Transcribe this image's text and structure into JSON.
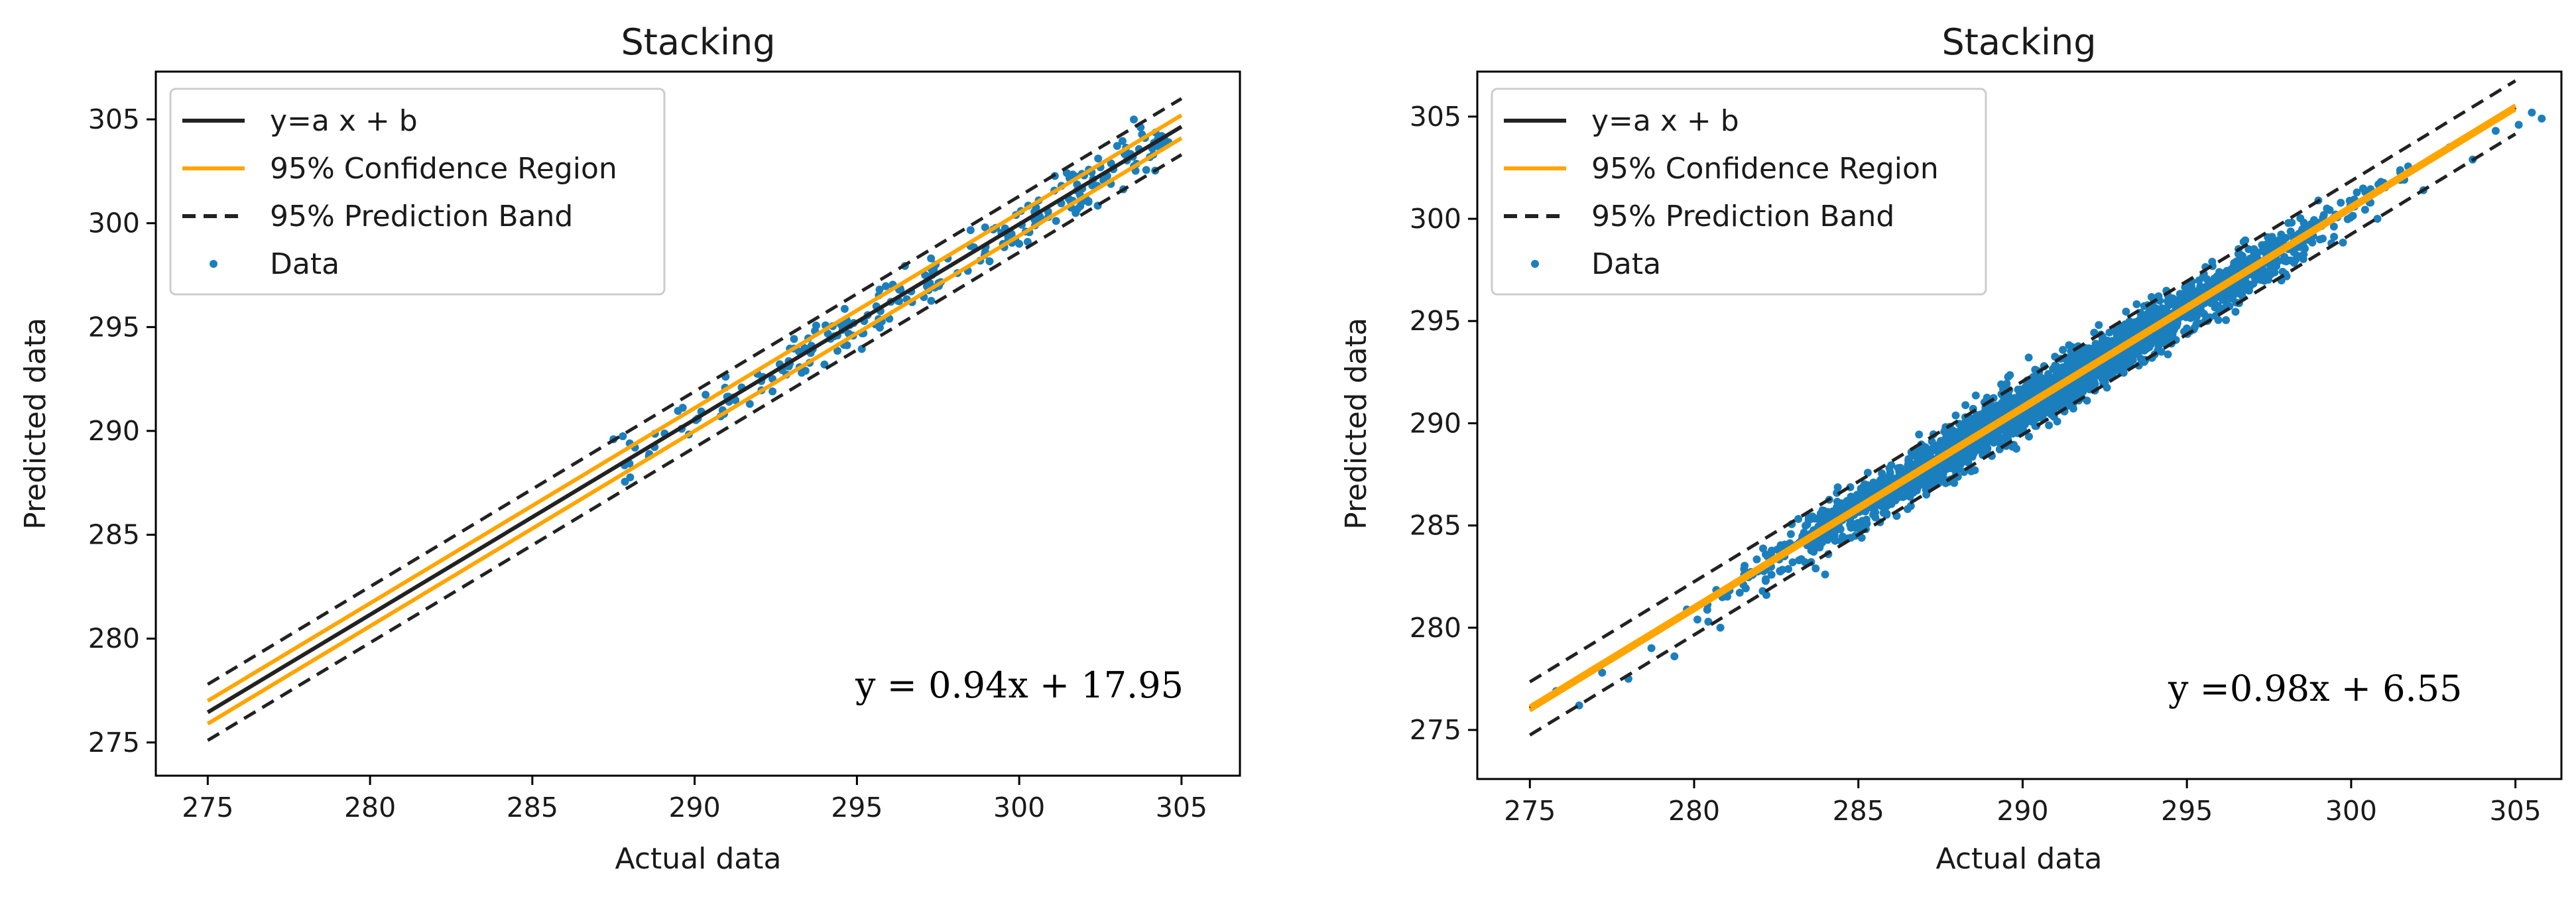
{
  "chart_data": [
    {
      "type": "scatter",
      "title": "Stacking",
      "xlabel": "Actual data",
      "ylabel": "Predicted data",
      "xlim": [
        273.4,
        306.8
      ],
      "ylim": [
        273.4,
        307.3
      ],
      "xticks": [
        275,
        280,
        285,
        290,
        295,
        300,
        305
      ],
      "yticks": [
        275,
        280,
        285,
        290,
        295,
        300,
        305
      ],
      "fit": {
        "slope": 0.94,
        "intercept": 17.95
      },
      "confidence_halfwidth": 0.55,
      "prediction_halfwidth": 1.35,
      "equation_text": "y = 0.94x + 17.95",
      "legend": [
        {
          "label": "y=a x + b",
          "style": "solid",
          "color": "#222222"
        },
        {
          "label": "95% Confidence Region",
          "style": "solid",
          "color": "#ffa500"
        },
        {
          "label": "95% Prediction Band",
          "style": "dashed",
          "color": "#222222"
        },
        {
          "label": "Data",
          "style": "marker",
          "color": "#1f77b4"
        }
      ],
      "legend_location": "upper-left",
      "data_summary": {
        "x_range": [
          287.5,
          304.5
        ],
        "n_points": 240,
        "residual_sd": 0.6
      },
      "points": [
        [
          287.5,
          289.6
        ],
        [
          288.0,
          289.4
        ],
        [
          289.6,
          290.1
        ],
        [
          290.1,
          290.6
        ],
        [
          290.8,
          290.7
        ],
        [
          291.2,
          291.6
        ],
        [
          291.7,
          291.3
        ],
        [
          292.1,
          292.6
        ],
        [
          292.4,
          291.9
        ],
        [
          292.9,
          293.1
        ],
        [
          293.3,
          292.8
        ],
        [
          293.6,
          294.1
        ],
        [
          294.0,
          293.2
        ],
        [
          294.4,
          294.6
        ],
        [
          294.9,
          295.2
        ],
        [
          295.2,
          294.7
        ],
        [
          295.6,
          296.0
        ],
        [
          296.0,
          295.4
        ],
        [
          296.3,
          296.8
        ],
        [
          296.7,
          296.2
        ],
        [
          297.1,
          297.5
        ],
        [
          297.4,
          296.9
        ],
        [
          297.8,
          298.3
        ],
        [
          298.1,
          297.6
        ],
        [
          298.5,
          298.9
        ],
        [
          298.8,
          298.2
        ],
        [
          299.2,
          299.7
        ],
        [
          299.5,
          299.0
        ],
        [
          299.9,
          300.4
        ],
        [
          300.2,
          299.6
        ],
        [
          300.6,
          301.1
        ],
        [
          300.9,
          300.3
        ],
        [
          301.3,
          301.8
        ],
        [
          301.6,
          301.0
        ],
        [
          302.0,
          302.3
        ],
        [
          302.4,
          301.8
        ],
        [
          302.9,
          302.6
        ],
        [
          303.5,
          303.2
        ],
        [
          304.1,
          303.6
        ],
        [
          304.6,
          303.9
        ]
      ]
    },
    {
      "type": "scatter",
      "title": "Stacking",
      "xlabel": "Actual data",
      "ylabel": "Predicted data",
      "xlim": [
        273.4,
        306.4
      ],
      "ylim": [
        272.6,
        307.2
      ],
      "xticks": [
        275,
        280,
        285,
        290,
        295,
        300,
        305
      ],
      "yticks": [
        275,
        280,
        285,
        290,
        295,
        300,
        305
      ],
      "fit": {
        "slope": 0.98,
        "intercept": 6.55
      },
      "confidence_halfwidth": 0.1,
      "prediction_halfwidth": 1.3,
      "equation_text": "y =0.98x + 6.55",
      "legend": [
        {
          "label": "y=a x + b",
          "style": "solid",
          "color": "#222222"
        },
        {
          "label": "95% Confidence Region",
          "style": "solid",
          "color": "#ffa500"
        },
        {
          "label": "95% Prediction Band",
          "style": "dashed",
          "color": "#222222"
        },
        {
          "label": "Data",
          "style": "marker",
          "color": "#1f77b4"
        }
      ],
      "legend_location": "upper-left",
      "data_summary": {
        "x_range": [
          275.8,
          305.8
        ],
        "n_points": 2600,
        "residual_sd": 0.6
      },
      "points": [
        [
          275.8,
          276.9
        ],
        [
          276.5,
          276.2
        ],
        [
          277.2,
          277.8
        ],
        [
          278.0,
          277.5
        ],
        [
          278.7,
          279.0
        ],
        [
          279.4,
          278.6
        ],
        [
          280.1,
          280.4
        ],
        [
          280.8,
          280.0
        ],
        [
          281.5,
          282.1
        ],
        [
          282.2,
          281.6
        ],
        [
          283.0,
          283.2
        ],
        [
          283.7,
          282.9
        ],
        [
          284.4,
          285.0
        ],
        [
          285.1,
          284.4
        ],
        [
          285.8,
          286.1
        ],
        [
          286.5,
          285.8
        ],
        [
          287.2,
          287.6
        ],
        [
          288.0,
          287.4
        ],
        [
          288.7,
          289.2
        ],
        [
          289.4,
          288.9
        ],
        [
          290.1,
          290.5
        ],
        [
          290.8,
          289.9
        ],
        [
          291.5,
          291.8
        ],
        [
          292.2,
          291.6
        ],
        [
          293.0,
          293.4
        ],
        [
          293.7,
          293.0
        ],
        [
          294.4,
          294.8
        ],
        [
          295.1,
          294.5
        ],
        [
          295.8,
          296.2
        ],
        [
          296.5,
          295.9
        ],
        [
          297.2,
          297.7
        ],
        [
          298.0,
          297.3
        ],
        [
          298.7,
          299.1
        ],
        [
          299.4,
          298.8
        ],
        [
          300.1,
          300.6
        ],
        [
          300.8,
          300.0
        ],
        [
          301.5,
          301.9
        ],
        [
          302.2,
          301.4
        ],
        [
          303.0,
          303.5
        ],
        [
          303.7,
          302.9
        ],
        [
          304.4,
          304.3
        ],
        [
          305.1,
          304.6
        ],
        [
          305.5,
          305.2
        ],
        [
          305.8,
          304.9
        ]
      ]
    }
  ]
}
